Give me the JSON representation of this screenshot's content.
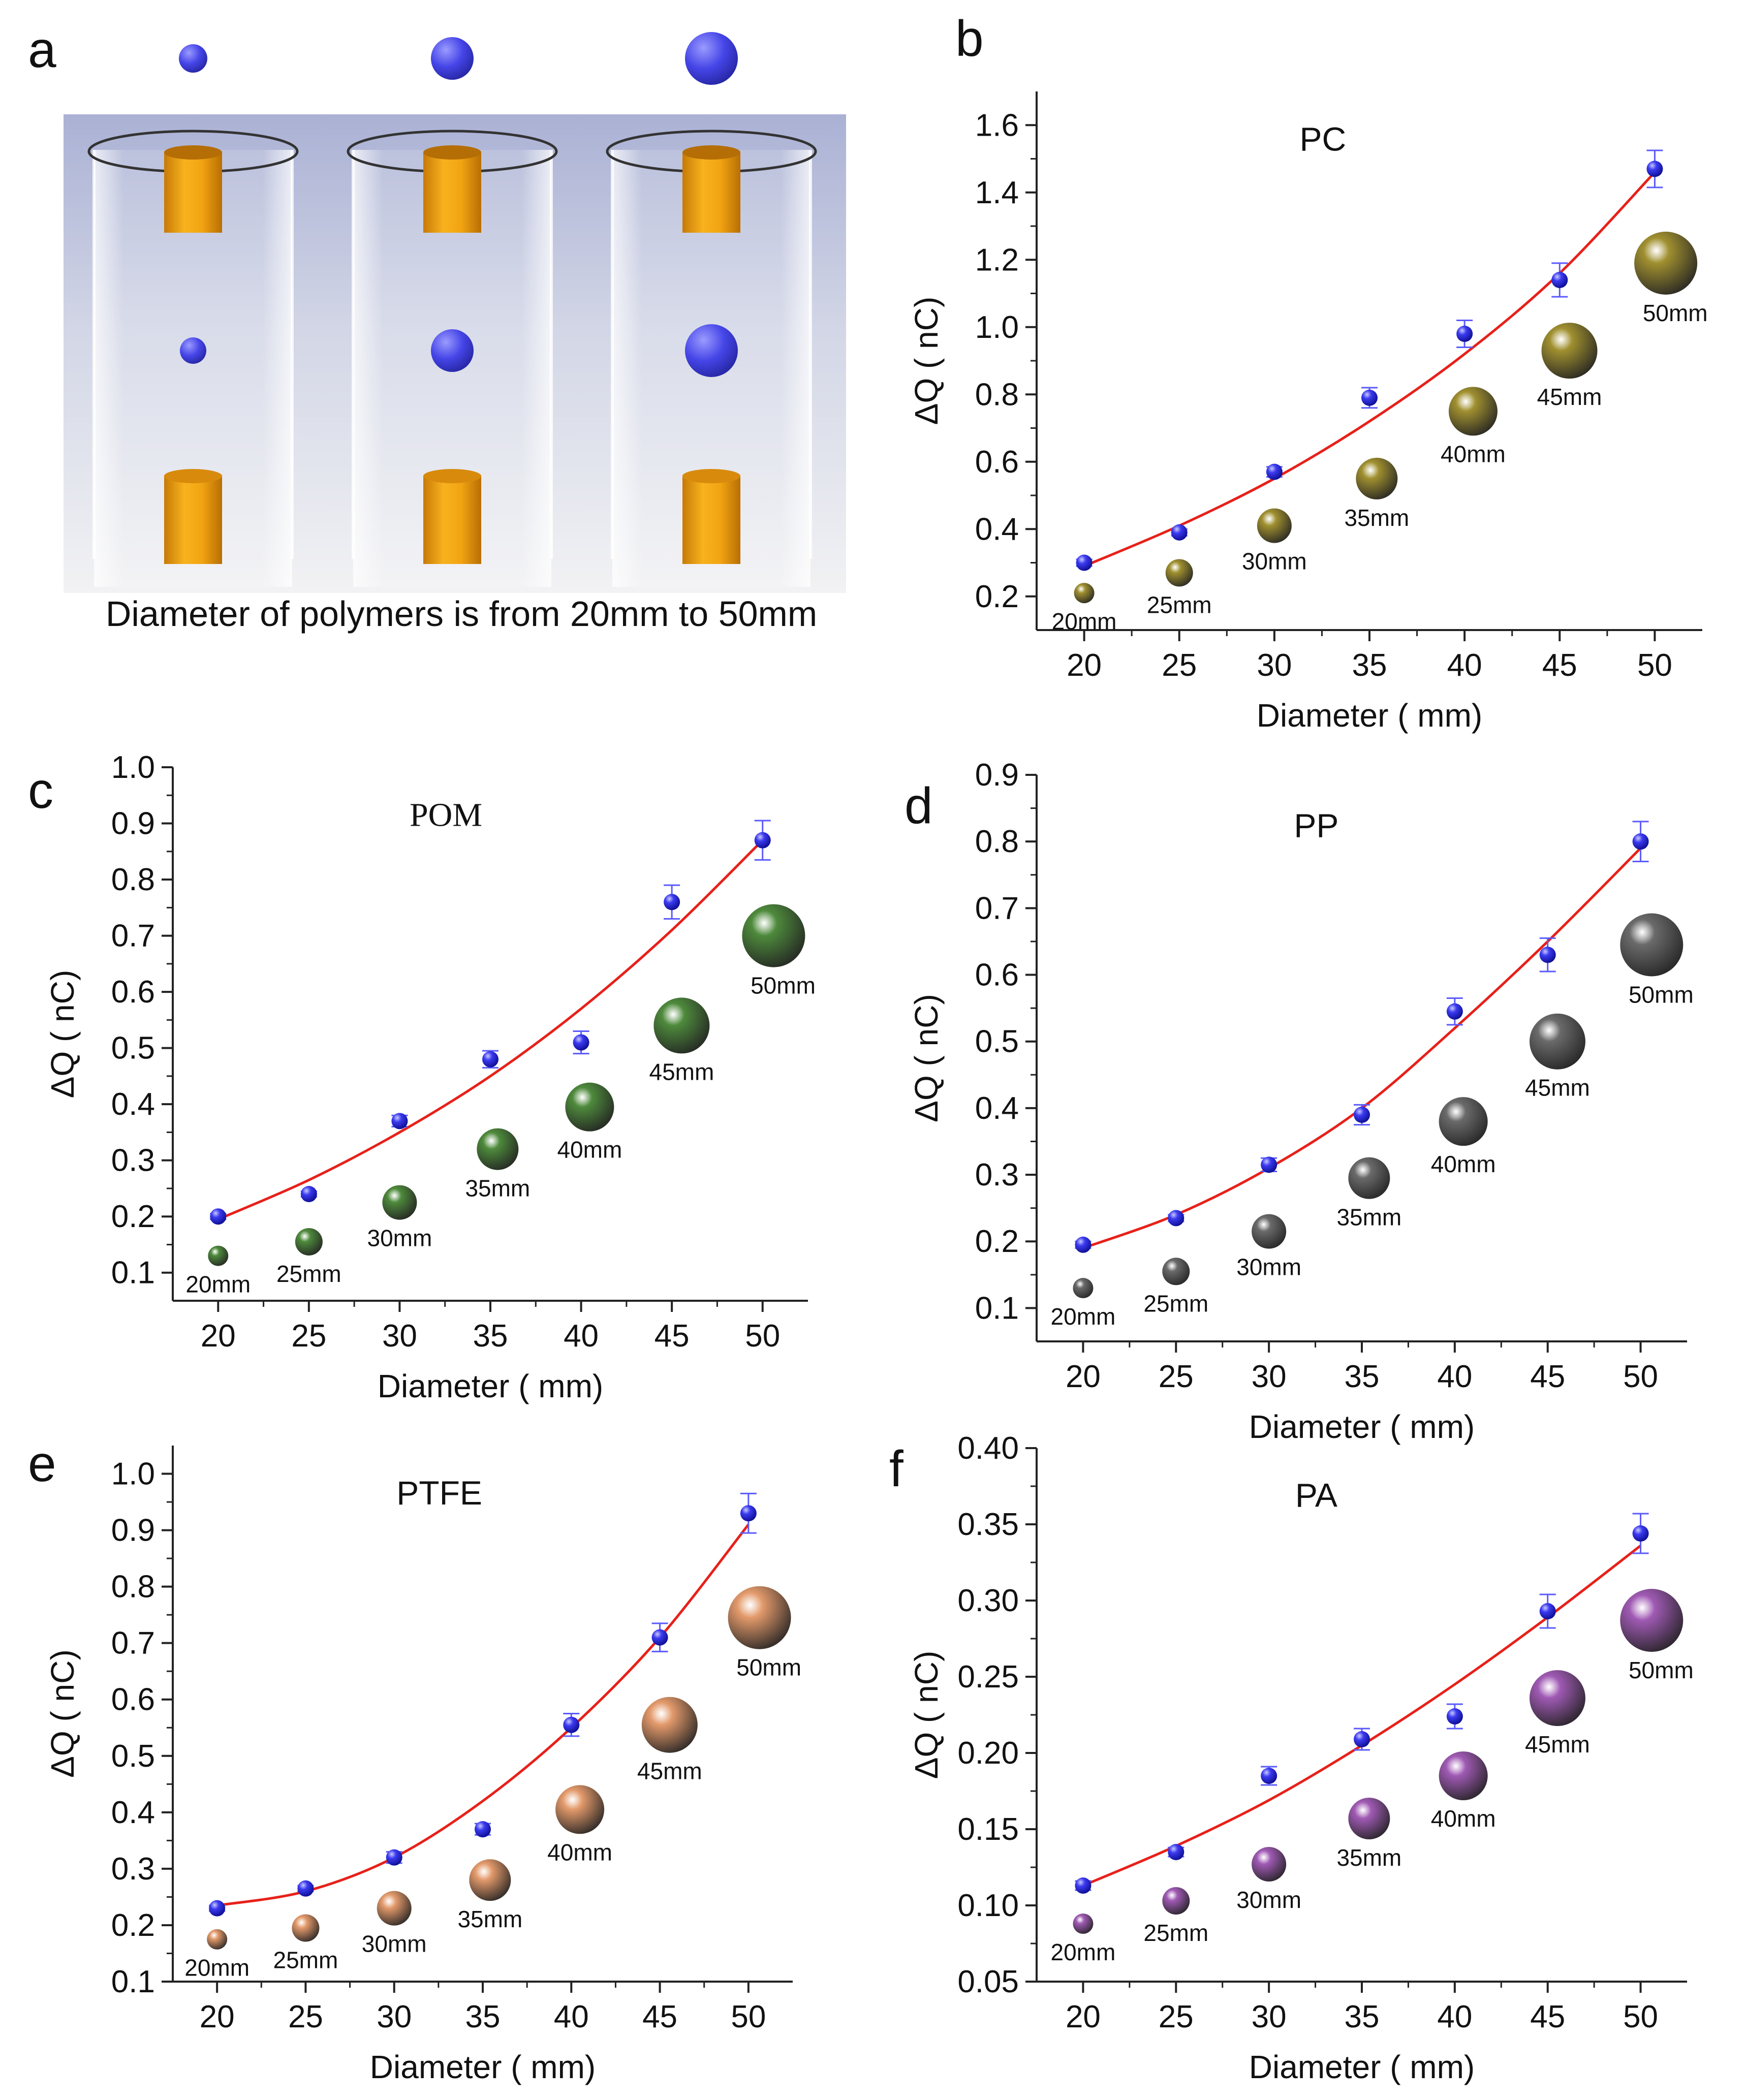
{
  "figure": {
    "panel_a": {
      "letter": "a",
      "caption": "Diameter of polymers is from 20mm to 50mm",
      "apparatus_count": 3,
      "ball_color": "#3c3ce6",
      "electrode_color": "#f0a414"
    }
  },
  "chart_data": [
    {
      "panel": "b",
      "type": "scatter",
      "title": "PC",
      "title_serif": false,
      "xlabel": "Diameter ( mm)",
      "ylabel": "ΔQ ( nC)",
      "x": [
        20,
        25,
        30,
        35,
        40,
        45,
        50
      ],
      "y": [
        0.3,
        0.39,
        0.57,
        0.79,
        0.98,
        1.14,
        1.47
      ],
      "yerr": [
        0.01,
        0.01,
        0.015,
        0.03,
        0.04,
        0.05,
        0.055
      ],
      "fit": [
        0.29,
        0.41,
        0.55,
        0.72,
        0.92,
        1.16,
        1.46
      ],
      "xlim": [
        17.5,
        52.5
      ],
      "ylim": [
        0.1,
        1.7
      ],
      "xticks": [
        "20",
        "25",
        "30",
        "35",
        "40",
        "45",
        "50"
      ],
      "yticks": [
        "0.2",
        "0.4",
        "0.6",
        "0.8",
        "1.0",
        "1.2",
        "1.4",
        "1.6"
      ],
      "sphere_y": [
        0.21,
        0.27,
        0.41,
        0.55,
        0.75,
        0.93,
        1.19
      ],
      "sphere_color": "#a09030",
      "size_labels": [
        "20mm",
        "25mm",
        "30mm",
        "35mm",
        "40mm",
        "45mm",
        "50mm"
      ]
    },
    {
      "panel": "c",
      "type": "scatter",
      "title": "POM",
      "title_serif": true,
      "xlabel": "Diameter ( mm)",
      "ylabel": "ΔQ ( nC)",
      "x": [
        20,
        25,
        30,
        35,
        40,
        45,
        50
      ],
      "y": [
        0.2,
        0.24,
        0.37,
        0.48,
        0.51,
        0.76,
        0.87
      ],
      "yerr": [
        0.005,
        0.005,
        0.01,
        0.015,
        0.02,
        0.03,
        0.035
      ],
      "fit": [
        0.195,
        0.265,
        0.35,
        0.45,
        0.57,
        0.71,
        0.87
      ],
      "xlim": [
        17.5,
        52.5
      ],
      "ylim": [
        0.05,
        1.0
      ],
      "xticks": [
        "20",
        "25",
        "30",
        "35",
        "40",
        "45",
        "50"
      ],
      "yticks": [
        "0.1",
        "0.2",
        "0.3",
        "0.4",
        "0.5",
        "0.6",
        "0.7",
        "0.8",
        "0.9",
        "1.0"
      ],
      "sphere_y": [
        0.13,
        0.155,
        0.225,
        0.32,
        0.395,
        0.54,
        0.7
      ],
      "sphere_color": "#4e8a3c",
      "size_labels": [
        "20mm",
        "25mm",
        "30mm",
        "35mm",
        "40mm",
        "45mm",
        "50mm"
      ]
    },
    {
      "panel": "d",
      "type": "scatter",
      "title": "PP",
      "title_serif": false,
      "xlabel": "Diameter ( mm)",
      "ylabel": "ΔQ ( nC)",
      "x": [
        20,
        25,
        30,
        35,
        40,
        45,
        50
      ],
      "y": [
        0.195,
        0.235,
        0.315,
        0.39,
        0.545,
        0.63,
        0.8
      ],
      "yerr": [
        0.005,
        0.005,
        0.01,
        0.015,
        0.02,
        0.025,
        0.03
      ],
      "fit": [
        0.19,
        0.24,
        0.31,
        0.4,
        0.52,
        0.65,
        0.79
      ],
      "xlim": [
        17.5,
        52.5
      ],
      "ylim": [
        0.05,
        0.9
      ],
      "xticks": [
        "20",
        "25",
        "30",
        "35",
        "40",
        "45",
        "50"
      ],
      "yticks": [
        "0.1",
        "0.2",
        "0.3",
        "0.4",
        "0.5",
        "0.6",
        "0.7",
        "0.8",
        "0.9"
      ],
      "sphere_y": [
        0.13,
        0.155,
        0.215,
        0.295,
        0.38,
        0.5,
        0.645
      ],
      "sphere_color": "#6a6a6a",
      "size_labels": [
        "20mm",
        "25mm",
        "30mm",
        "35mm",
        "40mm",
        "45mm",
        "50mm"
      ]
    },
    {
      "panel": "e",
      "type": "scatter",
      "title": "PTFE",
      "title_serif": false,
      "xlabel": "Diameter ( mm)",
      "ylabel": "ΔQ ( nC)",
      "x": [
        20,
        25,
        30,
        35,
        40,
        45,
        50
      ],
      "y": [
        0.23,
        0.265,
        0.32,
        0.37,
        0.555,
        0.71,
        0.93
      ],
      "yerr": [
        0.005,
        0.005,
        0.01,
        0.01,
        0.02,
        0.025,
        0.035
      ],
      "fit": [
        0.235,
        0.26,
        0.32,
        0.42,
        0.55,
        0.71,
        0.91
      ],
      "xlim": [
        17.5,
        52.5
      ],
      "ylim": [
        0.1,
        1.05
      ],
      "xticks": [
        "20",
        "25",
        "30",
        "35",
        "40",
        "45",
        "50"
      ],
      "yticks": [
        "0.1",
        "0.2",
        "0.3",
        "0.4",
        "0.5",
        "0.6",
        "0.7",
        "0.8",
        "0.9",
        "1.0"
      ],
      "sphere_y": [
        0.175,
        0.195,
        0.23,
        0.28,
        0.405,
        0.555,
        0.745
      ],
      "sphere_color": "#e39a6b",
      "size_labels": [
        "20mm",
        "25mm",
        "30mm",
        "35mm",
        "40mm",
        "45mm",
        "50mm"
      ]
    },
    {
      "panel": "f",
      "type": "scatter",
      "title": "PA",
      "title_serif": false,
      "xlabel": "Diameter ( mm)",
      "ylabel": "ΔQ ( nC)",
      "x": [
        20,
        25,
        30,
        35,
        40,
        45,
        50
      ],
      "y": [
        0.113,
        0.135,
        0.185,
        0.209,
        0.224,
        0.293,
        0.344
      ],
      "yerr": [
        0.003,
        0.003,
        0.006,
        0.007,
        0.008,
        0.011,
        0.013
      ],
      "fit": [
        0.113,
        0.139,
        0.169,
        0.205,
        0.245,
        0.289,
        0.336
      ],
      "xlim": [
        17.5,
        52.5
      ],
      "ylim": [
        0.05,
        0.4
      ],
      "xticks": [
        "20",
        "25",
        "30",
        "35",
        "40",
        "45",
        "50"
      ],
      "yticks": [
        "0.05",
        "0.10",
        "0.15",
        "0.20",
        "0.25",
        "0.30",
        "0.35",
        "0.40"
      ],
      "sphere_y": [
        0.088,
        0.103,
        0.127,
        0.157,
        0.185,
        0.236,
        0.287
      ],
      "sphere_color": "#a05ab4",
      "size_labels": [
        "20mm",
        "25mm",
        "30mm",
        "35mm",
        "40mm",
        "45mm",
        "50mm"
      ]
    }
  ]
}
